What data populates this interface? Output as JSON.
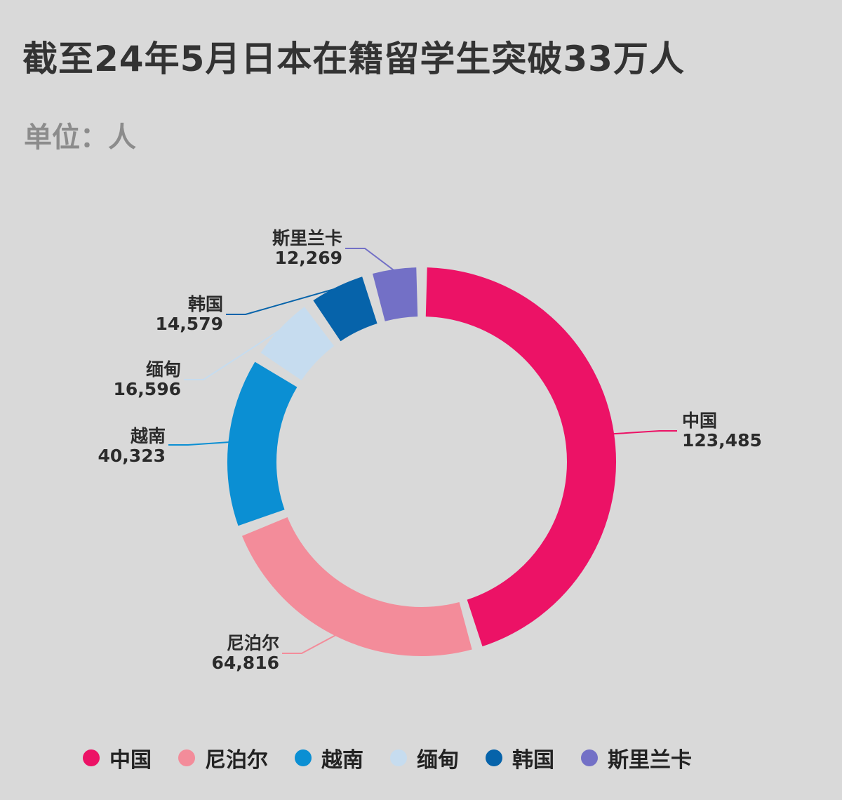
{
  "title": "截至24年5月日本在籍留学生突破33万人",
  "unit_label": "单位：人",
  "chart_data": {
    "type": "pie",
    "donut": true,
    "categories": [
      "中国",
      "尼泊尔",
      "越南",
      "缅甸",
      "韩国",
      "斯里兰卡"
    ],
    "values": [
      123485,
      64816,
      40323,
      16596,
      14579,
      12269
    ],
    "value_labels": [
      "123,485",
      "64,816",
      "40,323",
      "16,596",
      "14,579",
      "12,269"
    ],
    "colors": [
      "#ec1266",
      "#f38c9a",
      "#0b8fd3",
      "#c6dcef",
      "#0663aa",
      "#7370c6"
    ],
    "legend_position": "bottom"
  }
}
